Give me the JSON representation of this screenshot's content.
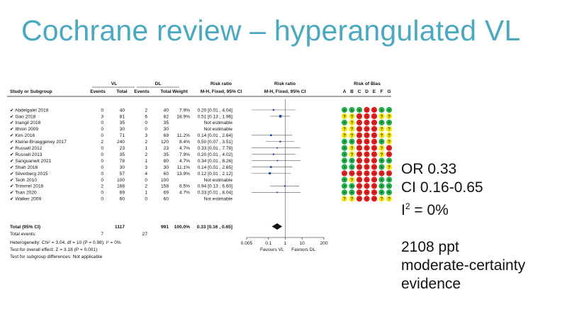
{
  "slide": {
    "title": "Cochrane review – hyperangulated VL",
    "notes": {
      "or": "OR 0.33",
      "ci": "CI 0.16-0.65",
      "i2_prefix": "I",
      "i2_sup": "2",
      "i2_rest": " = 0%",
      "participants": "2108 ppt",
      "certainty_1": "moderate-certainty",
      "certainty_2": "evidence"
    }
  },
  "forest": {
    "headers": {
      "vl": "VL",
      "dl": "DL",
      "study": "Study or Subgroup",
      "events": "Events",
      "total": "Total",
      "weight": "Weight",
      "rr_top": "Risk ratio",
      "rr_method": "M-H, Fixed, 95% CI",
      "rr_plot_top": "Risk ratio",
      "rr_plot_method": "M-H, Fixed, 95% CI",
      "bias_title": "Risk of Bias",
      "bias_letters": [
        "A",
        "B",
        "C",
        "D",
        "E",
        "F",
        "G"
      ]
    },
    "colors": {
      "low": "#22b14c",
      "high": "#e11d1d",
      "unclear": "#f5e800",
      "marker": "#1a3ea8"
    },
    "studies": [
      {
        "name": "✔ Abdelgalel 2018",
        "ve": "0",
        "vt": "40",
        "de": "2",
        "dt": "40",
        "w": "7.9%",
        "rr": "0.20 [0.01 , 4.04]",
        "est": 0.2,
        "lo": 0.01,
        "hi": 4.04,
        "bias": [
          "L",
          "L",
          "L",
          "H",
          "H",
          "L",
          "L"
        ]
      },
      {
        "name": "✔ Gao 2018",
        "ve": "3",
        "vt": "81",
        "de": "6",
        "dt": "82",
        "w": "18.9%",
        "rr": "0.51 [0.13 , 1.96]",
        "est": 0.51,
        "lo": 0.13,
        "hi": 1.96,
        "bias": [
          "U",
          "U",
          "H",
          "H",
          "H",
          "U",
          "U"
        ]
      },
      {
        "name": "✔ Inangil 2018",
        "ve": "0",
        "vt": "35",
        "de": "0",
        "dt": "35",
        "w": "",
        "rr": "Not estimable",
        "est": null,
        "lo": null,
        "hi": null,
        "bias": [
          "L",
          "U",
          "H",
          "H",
          "H",
          "L",
          "L"
        ]
      },
      {
        "name": "✔ Ithnin 2009",
        "ve": "0",
        "vt": "30",
        "de": "0",
        "dt": "30",
        "w": "",
        "rr": "Not estimable",
        "est": null,
        "lo": null,
        "hi": null,
        "bias": [
          "U",
          "U",
          "H",
          "H",
          "H",
          "U",
          "U"
        ]
      },
      {
        "name": "✔ Kim 2016",
        "ve": "0",
        "vt": "71",
        "de": "3",
        "dt": "69",
        "w": "11.2%",
        "rr": "0.14 [0.01 , 2.64]",
        "est": 0.14,
        "lo": 0.01,
        "hi": 2.64,
        "bias": [
          "U",
          "U",
          "H",
          "H",
          "H",
          "U",
          "U"
        ]
      },
      {
        "name": "✔ Kleine-Brueggeney 2017",
        "ve": "2",
        "vt": "240",
        "de": "2",
        "dt": "120",
        "w": "8.4%",
        "rr": "0.50 [0.07 , 3.51]",
        "est": 0.5,
        "lo": 0.07,
        "hi": 3.51,
        "bias": [
          "L",
          "L",
          "H",
          "H",
          "H",
          "L",
          "U"
        ]
      },
      {
        "name": "✔ Russell 2012",
        "ve": "0",
        "vt": "23",
        "de": "1",
        "dt": "23",
        "w": "4.7%",
        "rr": "0.33 [0.01 , 7.78]",
        "est": 0.33,
        "lo": 0.01,
        "hi": 7.78,
        "bias": [
          "L",
          "U",
          "H",
          "H",
          "H",
          "U",
          "H"
        ]
      },
      {
        "name": "✔ Russell 2013",
        "ve": "0",
        "vt": "35",
        "de": "2",
        "dt": "35",
        "w": "7.9%",
        "rr": "0.20 [0.01 , 4.02]",
        "est": 0.2,
        "lo": 0.01,
        "hi": 4.02,
        "bias": [
          "L",
          "U",
          "H",
          "H",
          "H",
          "U",
          "H"
        ]
      },
      {
        "name": "✔ Sanguanwit 2021",
        "ve": "0",
        "vt": "78",
        "de": "1",
        "dt": "80",
        "w": "4.7%",
        "rr": "0.34 [0.01 , 8.26]",
        "est": 0.34,
        "lo": 0.01,
        "hi": 8.26,
        "bias": [
          "L",
          "L",
          "H",
          "H",
          "H",
          "L",
          "L"
        ]
      },
      {
        "name": "✔ Shah 2016",
        "ve": "0",
        "vt": "30",
        "de": "3",
        "dt": "30",
        "w": "11.1%",
        "rr": "0.14 [0.01 , 2.65]",
        "est": 0.14,
        "lo": 0.01,
        "hi": 2.65,
        "bias": [
          "L",
          "L",
          "H",
          "H",
          "H",
          "L",
          "U"
        ]
      },
      {
        "name": "✔ Silverberg 2015",
        "ve": "0",
        "vt": "57",
        "de": "4",
        "dt": "60",
        "w": "13.9%",
        "rr": "0.12 [0.01 , 2.12]",
        "est": 0.12,
        "lo": 0.01,
        "hi": 2.12,
        "bias": [
          "H",
          "H",
          "H",
          "H",
          "H",
          "H",
          "H"
        ]
      },
      {
        "name": "✔ Teoh 2010",
        "ve": "0",
        "vt": "100",
        "de": "0",
        "dt": "100",
        "w": "",
        "rr": "Not estimable",
        "est": null,
        "lo": null,
        "hi": null,
        "bias": [
          "L",
          "U",
          "H",
          "H",
          "H",
          "L",
          "L"
        ]
      },
      {
        "name": "✔ Trimmel 2016",
        "ve": "2",
        "vt": "168",
        "de": "2",
        "dt": "158",
        "w": "6.5%",
        "rr": "0.94 [0.13 , 6.60]",
        "est": 0.94,
        "lo": 0.13,
        "hi": 6.6,
        "bias": [
          "L",
          "L",
          "H",
          "H",
          "H",
          "L",
          "L"
        ]
      },
      {
        "name": "✔ Tsan 2020",
        "ve": "0",
        "vt": "69",
        "de": "1",
        "dt": "69",
        "w": "4.7%",
        "rr": "0.33 [0.01 , 8.04]",
        "est": 0.33,
        "lo": 0.01,
        "hi": 8.04,
        "bias": [
          "L",
          "L",
          "H",
          "H",
          "H",
          "L",
          "L"
        ]
      },
      {
        "name": "✔ Walker 2009",
        "ve": "0",
        "vt": "60",
        "de": "0",
        "dt": "60",
        "w": "",
        "rr": "Not estimable",
        "est": null,
        "lo": null,
        "hi": null,
        "bias": [
          "U",
          "U",
          "H",
          "H",
          "H",
          "U",
          "U"
        ]
      }
    ],
    "total": {
      "label": "Total (95% CI)",
      "vt": "1117",
      "dt": "991",
      "w": "100.0%",
      "rr": "0.33 [0.16 , 0.65]",
      "est": 0.33,
      "lo": 0.16,
      "hi": 0.65
    },
    "total_events": {
      "label": "Total events:",
      "ve": "7",
      "de": "27"
    },
    "footer": [
      "Heterogeneity: Chi² = 3.04, df = 10 (P = 0.98); I² = 0%",
      "Test for overall effect: Z = 3.18 (P = 0.001)",
      "Test for subgroup differences: Not applicable"
    ],
    "axis": {
      "ticks": [
        0.005,
        0.1,
        1,
        10,
        200
      ],
      "tick_labels": [
        "0.005",
        "0.1",
        "1",
        "10",
        "200"
      ],
      "favours_left": "Favours VL",
      "favours_right": "Favours DL"
    }
  }
}
